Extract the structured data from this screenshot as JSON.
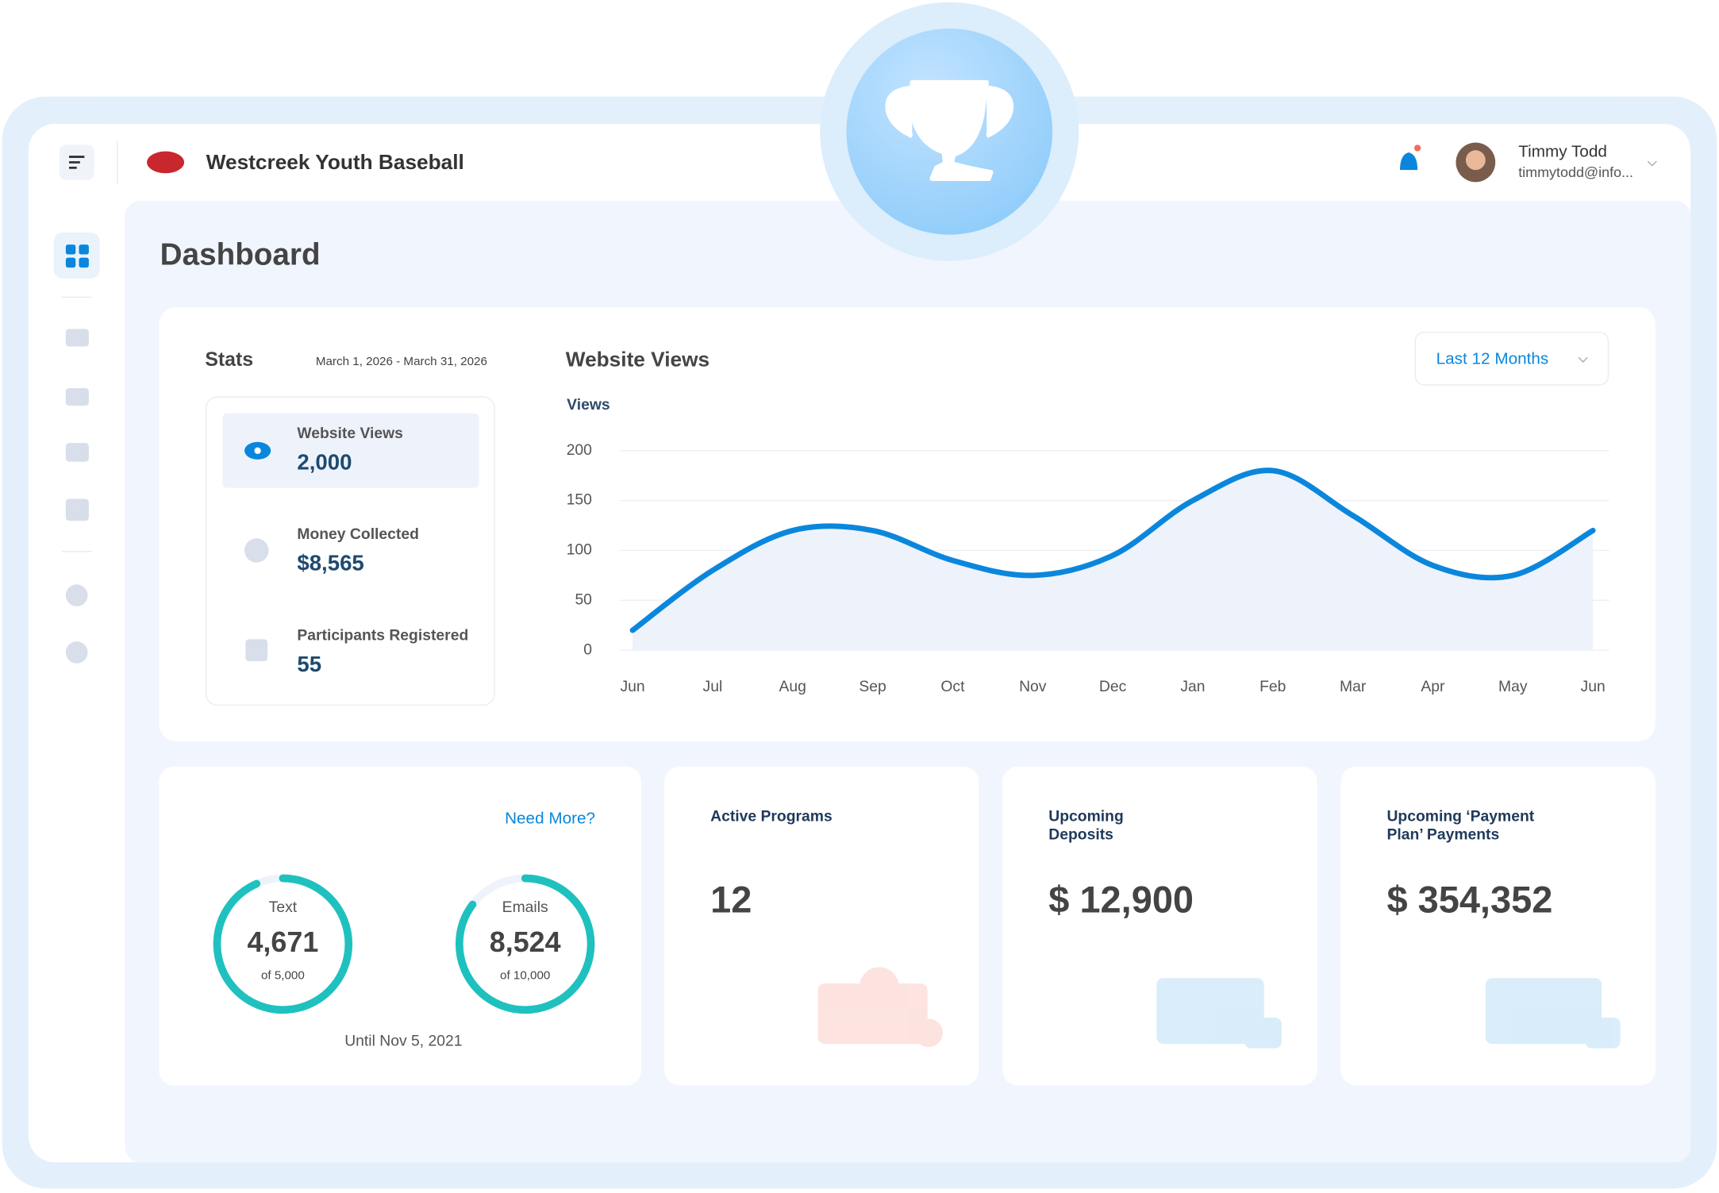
{
  "header": {
    "org_name": "Westcreek Youth Baseball",
    "user_name": "Timmy Todd",
    "user_email": "timmytodd@info..."
  },
  "page_title": "Dashboard",
  "stats": {
    "title": "Stats",
    "date_range": "March 1, 2026 - March 31, 2026",
    "items": [
      {
        "label": "Website Views",
        "value": "2,000"
      },
      {
        "label": "Money Collected",
        "value": "$8,565"
      },
      {
        "label": "Participants Registered",
        "value": "55"
      }
    ]
  },
  "chart_data": {
    "type": "line",
    "title": "Website Views",
    "y_label": "Views",
    "filter": "Last 12 Months",
    "categories": [
      "Jun",
      "Jul",
      "Aug",
      "Sep",
      "Oct",
      "Nov",
      "Dec",
      "Jan",
      "Feb",
      "Mar",
      "Apr",
      "May",
      "Jun"
    ],
    "values": [
      20,
      80,
      120,
      120,
      90,
      75,
      95,
      150,
      180,
      135,
      85,
      75,
      120
    ],
    "color": "#0a87dc",
    "ylim": [
      0,
      200
    ],
    "yticks": [
      0,
      50,
      100,
      150,
      200
    ],
    "grid": true
  },
  "messaging": {
    "link": "Need More?",
    "until": "Until Nov 5, 2021",
    "gauges": [
      {
        "label": "Text",
        "value": 4671,
        "value_label": "4,671",
        "max": 5000,
        "max_label": "of 5,000"
      },
      {
        "label": "Emails",
        "value": 8524,
        "value_label": "8,524",
        "max": 10000,
        "max_label": "of 10,000"
      }
    ]
  },
  "cards": [
    {
      "title": [
        "Active Programs"
      ],
      "value": "12"
    },
    {
      "title": [
        "Upcoming",
        "Deposits"
      ],
      "value": "$ 12,900"
    },
    {
      "title": [
        "Upcoming ‘Payment",
        "Plan’ Payments"
      ],
      "value": "$ 354,352"
    }
  ]
}
